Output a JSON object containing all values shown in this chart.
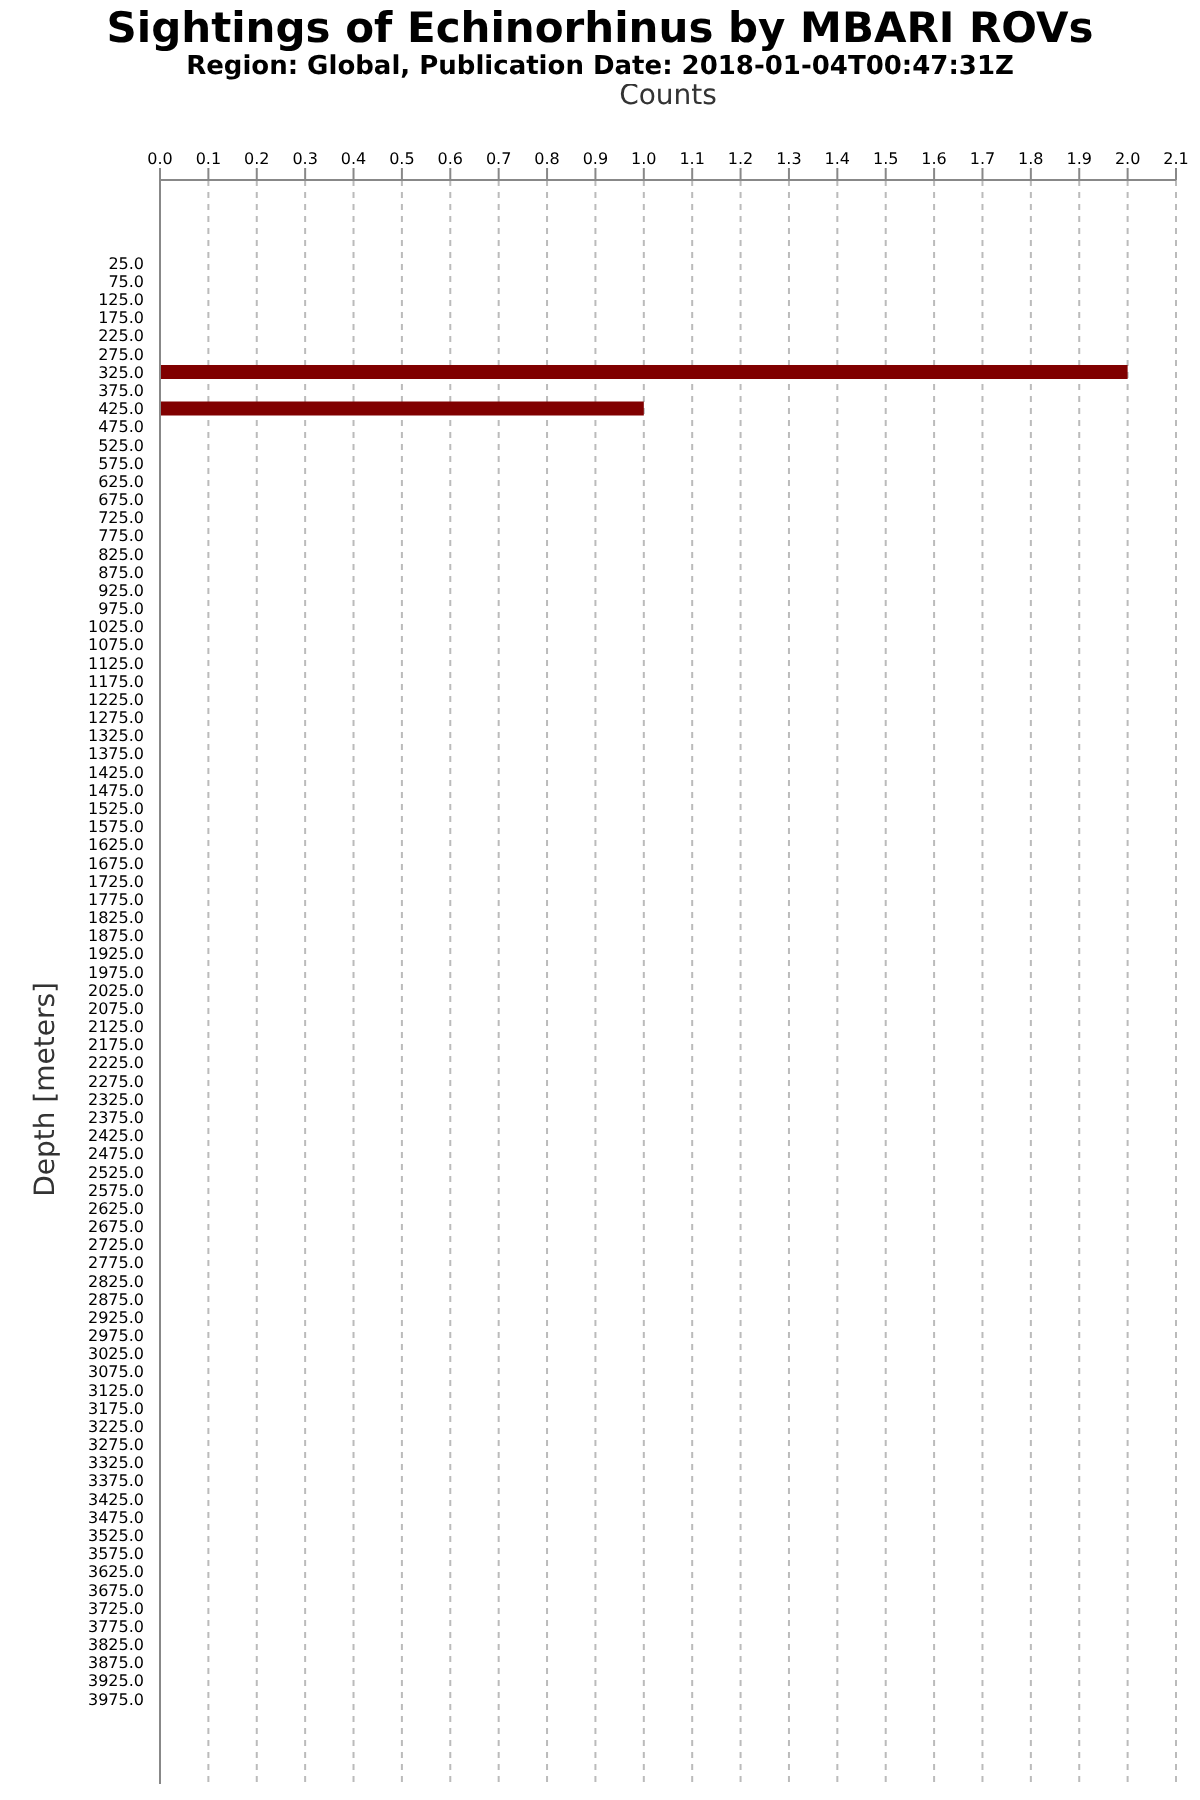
{
  "chart_data": {
    "type": "bar",
    "orientation": "horizontal",
    "title": "Sightings of Echinorhinus by MBARI ROVs",
    "subtitle": "Region: Global, Publication Date: 2018-01-04T00:47:31Z",
    "xlabel": "Counts",
    "ylabel": "Depth [meters]",
    "categories": [
      "25.0",
      "75.0",
      "125.0",
      "175.0",
      "225.0",
      "275.0",
      "325.0",
      "375.0",
      "425.0",
      "475.0",
      "525.0",
      "575.0",
      "625.0",
      "675.0",
      "725.0",
      "775.0",
      "825.0",
      "875.0",
      "925.0",
      "975.0",
      "1025.0",
      "1075.0",
      "1125.0",
      "1175.0",
      "1225.0",
      "1275.0",
      "1325.0",
      "1375.0",
      "1425.0",
      "1475.0",
      "1525.0",
      "1575.0",
      "1625.0",
      "1675.0",
      "1725.0",
      "1775.0",
      "1825.0",
      "1875.0",
      "1925.0",
      "1975.0",
      "2025.0",
      "2075.0",
      "2125.0",
      "2175.0",
      "2225.0",
      "2275.0",
      "2325.0",
      "2375.0",
      "2425.0",
      "2475.0",
      "2525.0",
      "2575.0",
      "2625.0",
      "2675.0",
      "2725.0",
      "2775.0",
      "2825.0",
      "2875.0",
      "2925.0",
      "2975.0",
      "3025.0",
      "3075.0",
      "3125.0",
      "3175.0",
      "3225.0",
      "3275.0",
      "3325.0",
      "3375.0",
      "3425.0",
      "3475.0",
      "3525.0",
      "3575.0",
      "3625.0",
      "3675.0",
      "3725.0",
      "3775.0",
      "3825.0",
      "3875.0",
      "3925.0",
      "3975.0"
    ],
    "values": [
      0,
      0,
      0,
      0,
      0,
      0,
      2,
      0,
      1,
      0,
      0,
      0,
      0,
      0,
      0,
      0,
      0,
      0,
      0,
      0,
      0,
      0,
      0,
      0,
      0,
      0,
      0,
      0,
      0,
      0,
      0,
      0,
      0,
      0,
      0,
      0,
      0,
      0,
      0,
      0,
      0,
      0,
      0,
      0,
      0,
      0,
      0,
      0,
      0,
      0,
      0,
      0,
      0,
      0,
      0,
      0,
      0,
      0,
      0,
      0,
      0,
      0,
      0,
      0,
      0,
      0,
      0,
      0,
      0,
      0,
      0,
      0,
      0,
      0,
      0,
      0,
      0,
      0,
      0,
      0
    ],
    "color": "#800000",
    "xlim": [
      0,
      2.1
    ],
    "xticks": [
      {
        "value": 0,
        "label": "0.0"
      },
      {
        "value": 0.1,
        "label": "0.1"
      },
      {
        "value": 0.2,
        "label": "0.2"
      },
      {
        "value": 0.3,
        "label": "0.3"
      },
      {
        "value": 0.4,
        "label": "0.4"
      },
      {
        "value": 0.5,
        "label": "0.5"
      },
      {
        "value": 0.6,
        "label": "0.6"
      },
      {
        "value": 0.7,
        "label": "0.7"
      },
      {
        "value": 0.8,
        "label": "0.8"
      },
      {
        "value": 0.9,
        "label": "0.9"
      },
      {
        "value": 1,
        "label": "1.0"
      },
      {
        "value": 1.1,
        "label": "1.1"
      },
      {
        "value": 1.2,
        "label": "1.2"
      },
      {
        "value": 1.3,
        "label": "1.3"
      },
      {
        "value": 1.4,
        "label": "1.4"
      },
      {
        "value": 1.5,
        "label": "1.5"
      },
      {
        "value": 1.6,
        "label": "1.6"
      },
      {
        "value": 1.7,
        "label": "1.7"
      },
      {
        "value": 1.8,
        "label": "1.8"
      },
      {
        "value": 1.9,
        "label": "1.9"
      },
      {
        "value": 2,
        "label": "2.0"
      },
      {
        "value": 2.1,
        "label": "2.1"
      }
    ],
    "grid": "x",
    "legend": false
  }
}
